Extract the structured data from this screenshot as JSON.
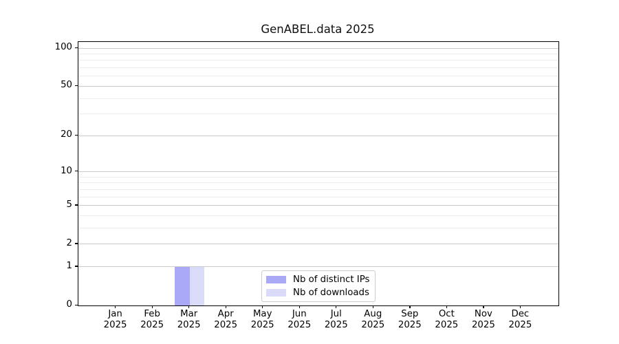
{
  "chart_data": {
    "type": "bar",
    "title": "GenABEL.data 2025",
    "categories": [
      "Jan",
      "Feb",
      "Mar",
      "Apr",
      "May",
      "Jun",
      "Jul",
      "Aug",
      "Sep",
      "Oct",
      "Nov",
      "Dec"
    ],
    "category_year": "2025",
    "series": [
      {
        "name": "Nb of distinct IPs",
        "color": "#a9a9f7",
        "values": [
          0,
          0,
          1,
          0,
          0,
          0,
          0,
          0,
          0,
          0,
          0,
          0
        ]
      },
      {
        "name": "Nb of downloads",
        "color": "#dadaf9",
        "values": [
          0,
          0,
          1,
          0,
          0,
          0,
          0,
          0,
          0,
          0,
          0,
          0
        ]
      }
    ],
    "yscale": "log1p",
    "ylim": [
      0,
      112
    ],
    "xlim_month_units": [
      -1.02,
      12.02
    ],
    "yticks_major": [
      0,
      1,
      2,
      5,
      10,
      20,
      50,
      100
    ],
    "yticks_minor": [
      3,
      4,
      6,
      7,
      8,
      9,
      30,
      40,
      60,
      70,
      80,
      90
    ],
    "bar_width_month_units": 0.4,
    "grid": "horizontal major+minor",
    "legend_position": "lower center inside plot"
  },
  "colors": {
    "background": "#ffffff",
    "spine": "#000000",
    "grid_major": "#cbcbcb",
    "grid_minor": "#ececec",
    "text": "#000000",
    "legend_border": "#cccccc"
  }
}
